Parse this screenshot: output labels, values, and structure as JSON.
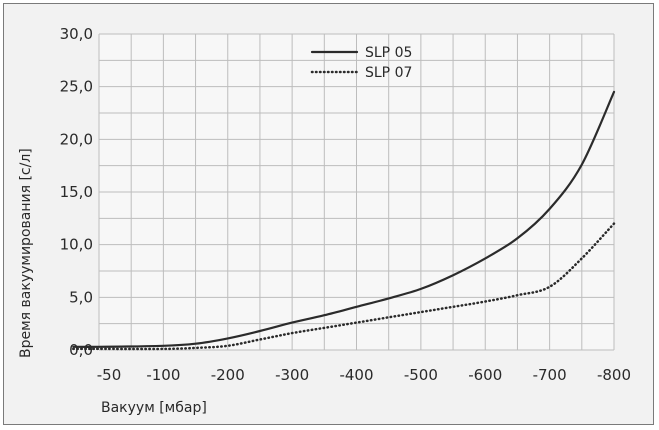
{
  "chart_data": {
    "type": "line",
    "title": "",
    "xlabel": "Вакуум [мбар]",
    "ylabel": "Время вакуумирования [с/л]",
    "categories": [
      "-50",
      "-100",
      "-200",
      "-300",
      "-400",
      "-500",
      "-600",
      "-700",
      "-800"
    ],
    "x_ticks": [
      -50,
      -100,
      -200,
      -300,
      -400,
      -500,
      -600,
      -700,
      -800
    ],
    "y_ticks": [
      "0,0",
      "5,0",
      "10,0",
      "15,0",
      "20,0",
      "25,0",
      "30,0"
    ],
    "ylim": [
      0,
      30
    ],
    "grid": true,
    "legend_position": "top-center",
    "series": [
      {
        "name": "SLP 05",
        "style": "solid",
        "color": "#2b2b2b",
        "points": [
          [
            -30,
            0.3
          ],
          [
            -50,
            0.3
          ],
          [
            -100,
            0.4
          ],
          [
            -150,
            0.6
          ],
          [
            -200,
            1.1
          ],
          [
            -250,
            1.8
          ],
          [
            -300,
            2.6
          ],
          [
            -350,
            3.3
          ],
          [
            -400,
            4.1
          ],
          [
            -450,
            4.9
          ],
          [
            -500,
            5.8
          ],
          [
            -550,
            7.1
          ],
          [
            -600,
            8.7
          ],
          [
            -650,
            10.6
          ],
          [
            -700,
            13.4
          ],
          [
            -750,
            17.6
          ],
          [
            -800,
            24.5
          ]
        ]
      },
      {
        "name": "SLP 07",
        "style": "dotted",
        "color": "#2b2b2b",
        "points": [
          [
            -30,
            0.1
          ],
          [
            -50,
            0.1
          ],
          [
            -100,
            0.1
          ],
          [
            -150,
            0.2
          ],
          [
            -200,
            0.4
          ],
          [
            -250,
            1.0
          ],
          [
            -300,
            1.6
          ],
          [
            -350,
            2.1
          ],
          [
            -400,
            2.6
          ],
          [
            -450,
            3.1
          ],
          [
            -500,
            3.6
          ],
          [
            -550,
            4.1
          ],
          [
            -600,
            4.6
          ],
          [
            -650,
            5.2
          ],
          [
            -700,
            6.0
          ],
          [
            -750,
            8.7
          ],
          [
            -800,
            12.0
          ]
        ]
      }
    ]
  }
}
